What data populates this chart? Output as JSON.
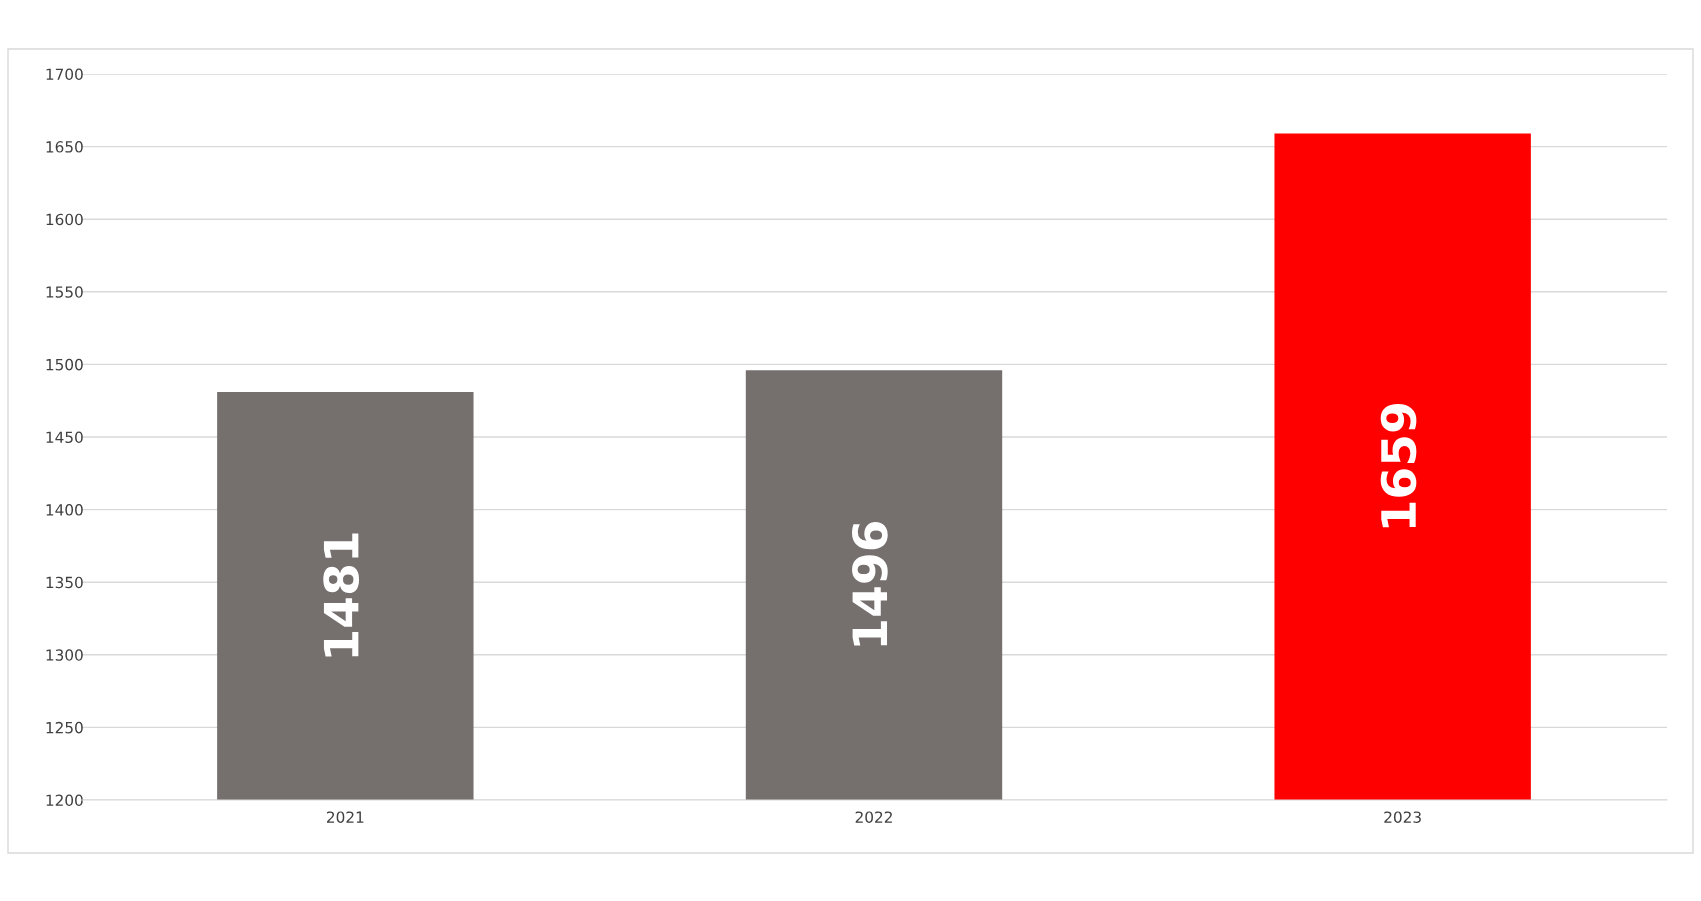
{
  "chart_data": {
    "type": "bar",
    "categories": [
      "2021",
      "2022",
      "2023"
    ],
    "values": [
      1481,
      1496,
      1659
    ],
    "colors": [
      "#756f6e",
      "#756f6e",
      "#ff0000"
    ],
    "ylim": [
      1200,
      1700
    ],
    "yticks": [
      1200,
      1250,
      1300,
      1350,
      1400,
      1450,
      1500,
      1550,
      1600,
      1650,
      1700
    ],
    "grid": "y",
    "data_labels": true
  }
}
